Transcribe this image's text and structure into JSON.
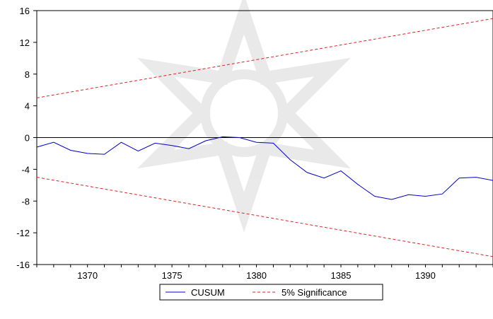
{
  "chart_data": {
    "type": "line",
    "title": "",
    "xlabel": "",
    "ylabel": "",
    "xlim": [
      1367,
      1394
    ],
    "ylim": [
      -16,
      16
    ],
    "x_ticks": [
      1370,
      1375,
      1380,
      1385,
      1390
    ],
    "y_ticks": [
      16,
      12,
      8,
      4,
      0,
      -4,
      -8,
      -12,
      -16
    ],
    "x_tick_labels": [
      "1370",
      "1375",
      "1380",
      "1385",
      "1390"
    ],
    "y_tick_labels": [
      "16",
      "12",
      "8",
      "4",
      "0",
      "-4",
      "-8",
      "-12",
      "-16"
    ],
    "zero_line": true,
    "grid": false,
    "legend_position": "bottom-center",
    "series": [
      {
        "name": "CUSUM",
        "color": "#0000cc",
        "style": "solid",
        "x": [
          1367,
          1368,
          1369,
          1370,
          1371,
          1372,
          1373,
          1374,
          1375,
          1376,
          1377,
          1378,
          1379,
          1380,
          1381,
          1382,
          1383,
          1384,
          1385,
          1386,
          1387,
          1388,
          1389,
          1390,
          1391,
          1392,
          1393,
          1394
        ],
        "y": [
          -1.2,
          -0.6,
          -1.6,
          -2.0,
          -2.1,
          -0.6,
          -1.7,
          -0.7,
          -1.0,
          -1.4,
          -0.4,
          0.1,
          0.0,
          -0.6,
          -0.7,
          -2.8,
          -4.4,
          -5.1,
          -4.2,
          -5.9,
          -7.4,
          -7.8,
          -7.2,
          -7.4,
          -7.1,
          -5.1,
          -5.0,
          -5.4
        ]
      },
      {
        "name": "5% Significance",
        "color": "#dd2222",
        "style": "dashed",
        "x": [
          1367,
          1394
        ],
        "y": [
          5.0,
          15.0
        ]
      },
      {
        "name": "",
        "color": "#dd2222",
        "style": "dashed",
        "x": [
          1367,
          1394
        ],
        "y": [
          -5.0,
          -15.0
        ]
      }
    ]
  }
}
